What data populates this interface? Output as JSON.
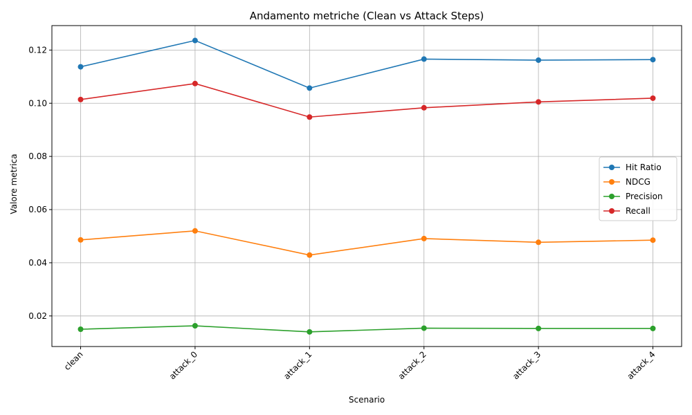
{
  "chart_data": {
    "type": "line",
    "title": "Andamento metriche (Clean vs Attack Steps)",
    "xlabel": "Scenario",
    "ylabel": "Valore metrica",
    "categories": [
      "clean",
      "attack_0",
      "attack_1",
      "attack_2",
      "attack_3",
      "attack_4"
    ],
    "ylim": [
      0.0085,
      0.1292
    ],
    "yticks": [
      0.02,
      0.04,
      0.06,
      0.08,
      0.1,
      0.12
    ],
    "ytick_labels": [
      "0.02",
      "0.04",
      "0.06",
      "0.08",
      "0.10",
      "0.12"
    ],
    "grid": true,
    "legend_position": "center-right",
    "series": [
      {
        "name": "Hit Ratio",
        "color": "#1f77b4",
        "values": [
          0.1137,
          0.1236,
          0.1057,
          0.1166,
          0.1162,
          0.1164
        ]
      },
      {
        "name": "NDCG",
        "color": "#ff7f0e",
        "values": [
          0.0486,
          0.052,
          0.0429,
          0.0491,
          0.0477,
          0.0485
        ]
      },
      {
        "name": "Precision",
        "color": "#2ca02c",
        "values": [
          0.015,
          0.0163,
          0.014,
          0.0154,
          0.0153,
          0.0153
        ]
      },
      {
        "name": "Recall",
        "color": "#d62728",
        "values": [
          0.1014,
          0.1074,
          0.0948,
          0.0983,
          0.1005,
          0.1019
        ]
      }
    ]
  }
}
